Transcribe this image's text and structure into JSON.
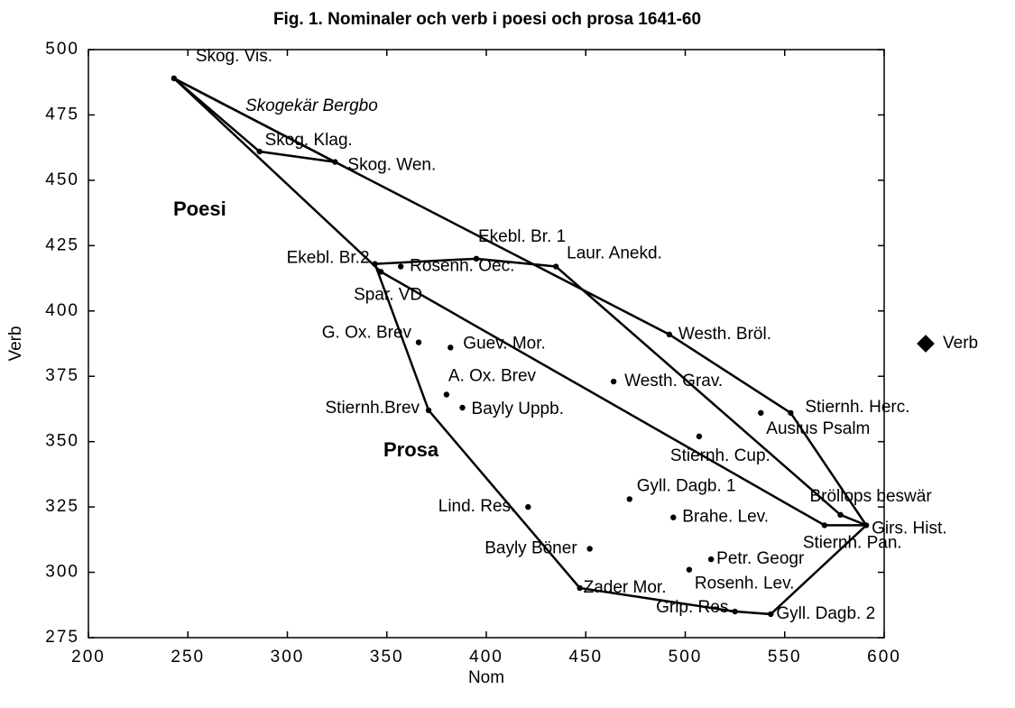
{
  "chart_data": {
    "type": "scatter",
    "title": "Fig. 1. Nominaler och verb i poesi och prosa 1641-60",
    "x_label": "Nom",
    "y_label": "Verb",
    "xlim": [
      200,
      600
    ],
    "xticks": [
      200,
      250,
      300,
      350,
      400,
      450,
      500,
      550,
      600
    ],
    "ylim": [
      275,
      500
    ],
    "yticks": [
      275,
      300,
      325,
      350,
      375,
      400,
      425,
      450,
      475,
      500
    ],
    "annotations": [
      "Poesi",
      "Prosa",
      "Skogekär Bergbo"
    ],
    "legend": "right",
    "series": [
      {
        "name": "Verb",
        "color": "#000000",
        "labels": [
          "Skog. Vis.",
          "Skog. Klag.",
          "Skog. Wen.",
          "Ekebl. Br.2",
          "Spar. VD",
          "Rosenh. Oec.",
          "Ekebl. Br. 1",
          "Laur. Anekd.",
          "Westh. Bröl.",
          "G. Ox. Brev",
          "Guev. Mor.",
          "Westh. Grav.",
          "A. Ox. Brev",
          "Bayly Uppb.",
          "Stiernh.Brev",
          "Ausius Psalm",
          "Stiernh. Herc.",
          "Stiernh. Cup.",
          "Lind. Res.",
          "Gyll. Dagb. 1",
          "Brahe. Lev.",
          "Bröllops beswär",
          "Girs. Hist.",
          "Stiernh. Pan.",
          "Bayly Böner",
          "Petr. Geogr",
          "Rosenh. Lev.",
          "Zader Mor.",
          "Grip. Res.",
          "Gyll. Dagb. 2"
        ],
        "x": [
          243,
          286,
          324,
          344,
          347,
          357,
          395,
          435,
          492,
          366,
          382,
          464,
          380,
          388,
          371,
          538,
          553,
          507,
          421,
          472,
          494,
          578,
          591,
          570,
          452,
          513,
          502,
          447,
          525,
          543
        ],
        "values": [
          489,
          461,
          457,
          418,
          415,
          417,
          420,
          417,
          391,
          388,
          386,
          373,
          368,
          363,
          362,
          361,
          361,
          352,
          325,
          328,
          321,
          322,
          318,
          318,
          309,
          305,
          301,
          294,
          285,
          284
        ]
      }
    ],
    "hulls": [
      {
        "x": [
          243,
          286,
          324,
          243
        ],
        "y": [
          489,
          461,
          457,
          489
        ]
      },
      {
        "x": [
          243,
          324,
          492,
          553,
          591,
          570,
          347,
          243
        ],
        "y": [
          489,
          457,
          391,
          361,
          318,
          318,
          415,
          489
        ]
      },
      {
        "x": [
          344,
          395,
          435,
          578,
          591,
          543,
          525,
          447,
          371,
          344
        ],
        "y": [
          418,
          420,
          417,
          322,
          318,
          284,
          285,
          294,
          362,
          418
        ]
      }
    ]
  }
}
